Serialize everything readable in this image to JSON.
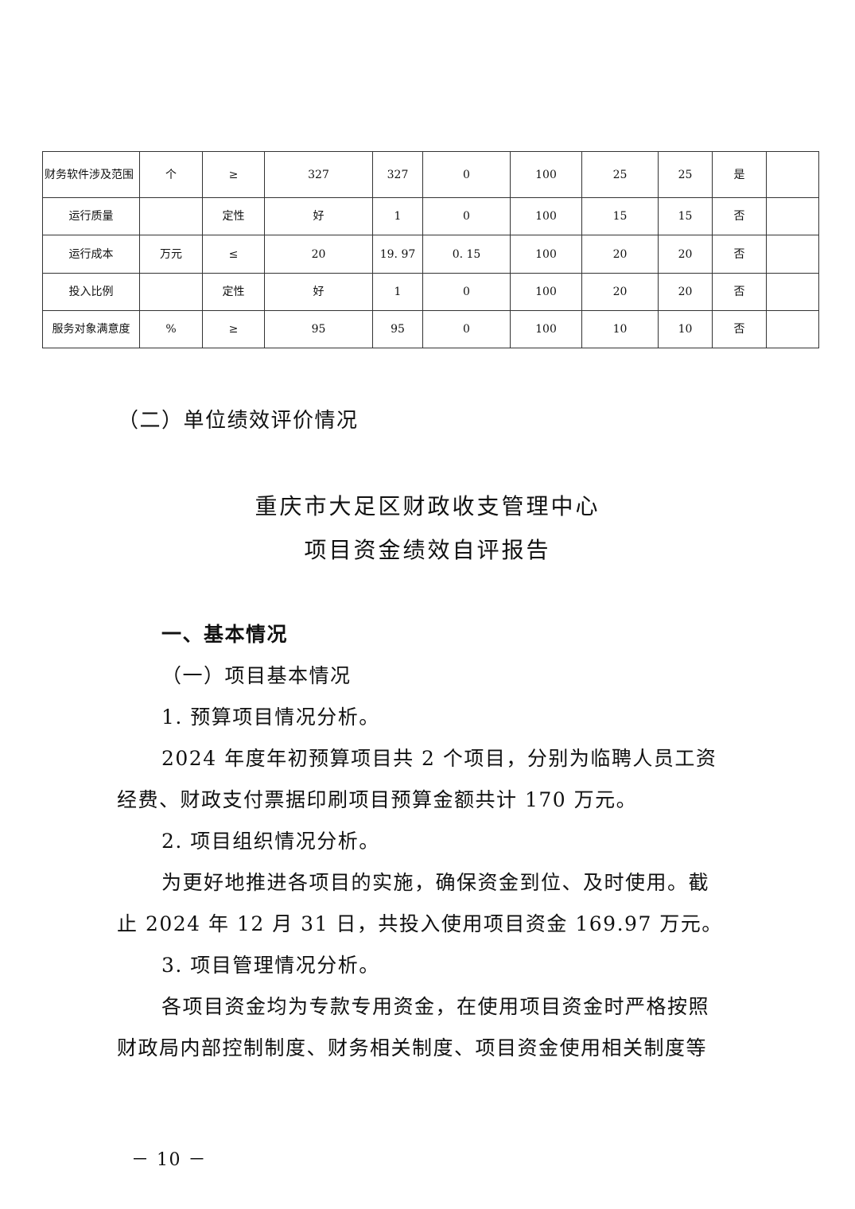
{
  "table": {
    "rows": [
      [
        "财务软件涉及范围",
        "个",
        "≥",
        "327",
        "327",
        "0",
        "100",
        "25",
        "25",
        "是",
        ""
      ],
      [
        "运行质量",
        "",
        "定性",
        "好",
        "1",
        "0",
        "100",
        "15",
        "15",
        "否",
        ""
      ],
      [
        "运行成本",
        "万元",
        "≤",
        "20",
        "19. 97",
        "0. 15",
        "100",
        "20",
        "20",
        "否",
        ""
      ],
      [
        "投入比例",
        "",
        "定性",
        "好",
        "1",
        "0",
        "100",
        "20",
        "20",
        "否",
        ""
      ],
      [
        "服务对象满意度",
        "%",
        "≥",
        "95",
        "95",
        "0",
        "100",
        "10",
        "10",
        "否",
        ""
      ]
    ]
  },
  "section_heading": "（二）单位绩效评价情况",
  "report_title": [
    "重庆市大足区财政收支管理中心",
    "项目资金绩效自评报告"
  ],
  "h1": "一、基本情况",
  "h2": "（一）项目基本情况",
  "lines": [
    "1.  预算项目情况分析。",
    "2024 年度年初预算项目共 2 个项目，分别为临聘人员工资",
    "经费、财政支付票据印刷项目预算金额共计 170 万元。",
    "2.  项目组织情况分析。",
    "为更好地推进各项目的实施，确保资金到位、及时使用。截",
    "止 2024 年 12 月 31 日，共投入使用项目资金 169.97 万元。",
    "3.  项目管理情况分析。",
    "各项目资金均为专款专用资金，在使用项目资金时严格按照",
    "财政局内部控制制度、财务相关制度、项目资金使用相关制度等"
  ],
  "page_number": "－ 10 －"
}
